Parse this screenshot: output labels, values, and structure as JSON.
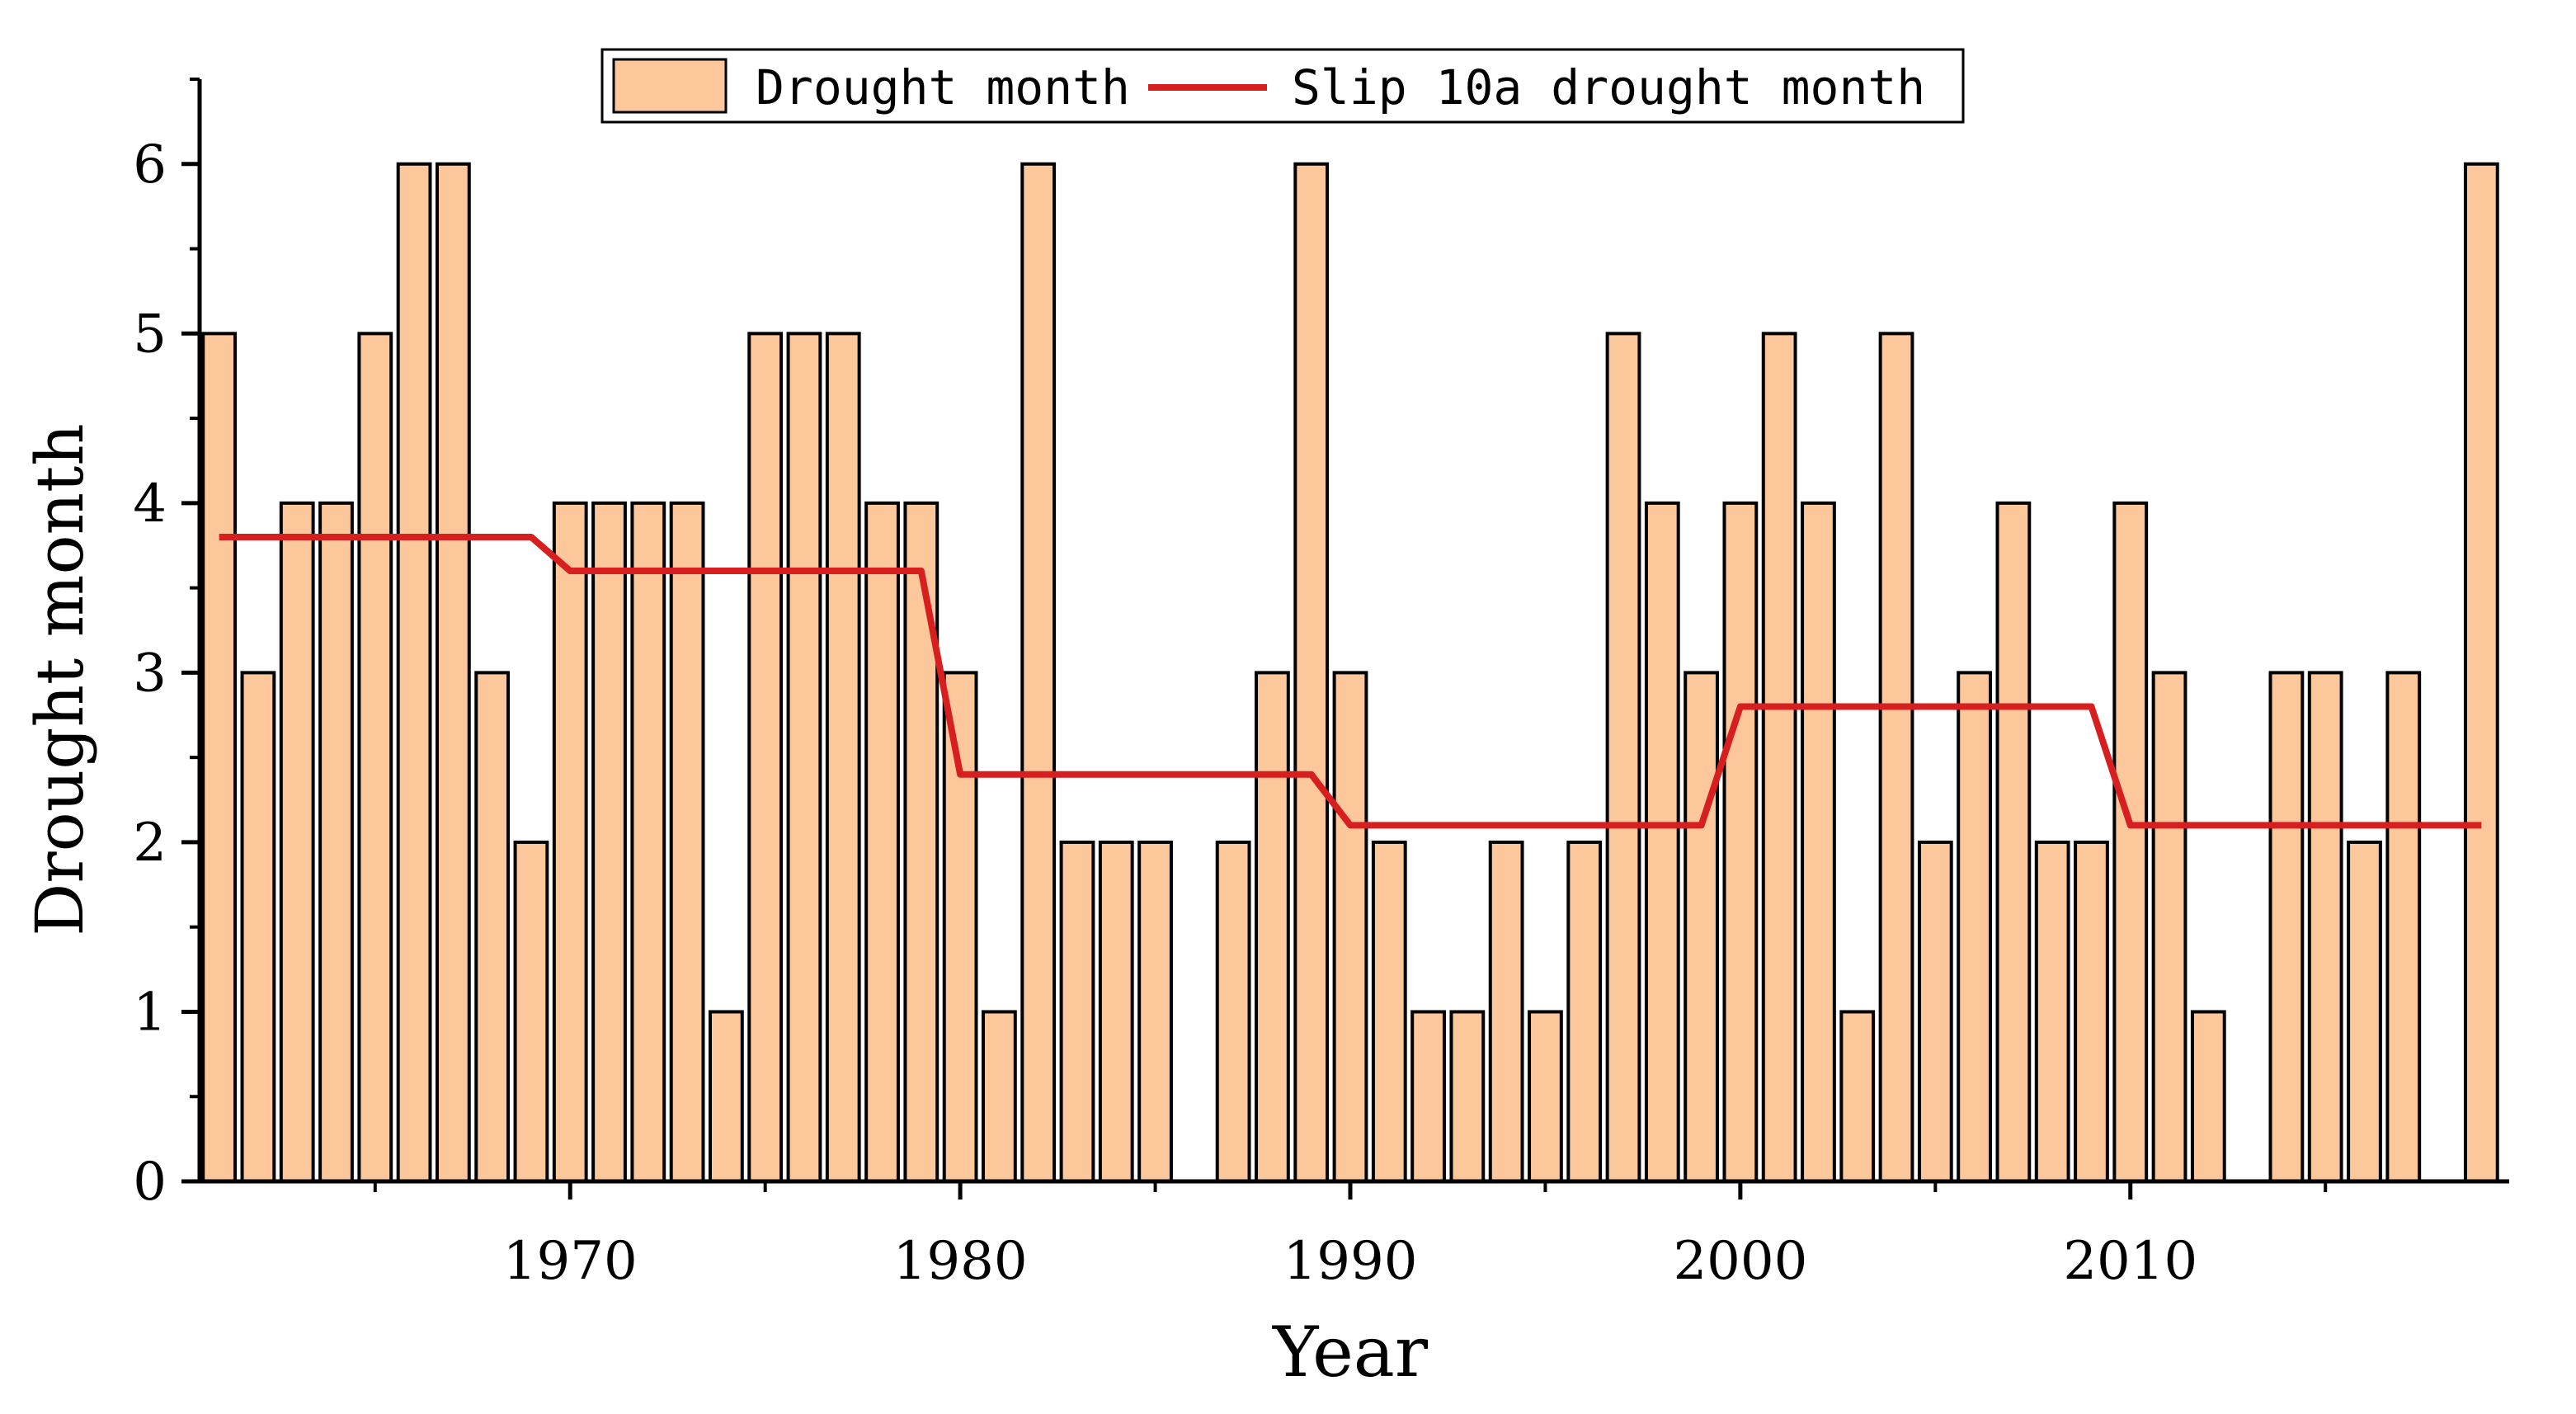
{
  "chart_data": {
    "type": "bar",
    "xlabel": "Year",
    "ylabel": "Drought month",
    "ylim": [
      0,
      6.5
    ],
    "xlim": [
      1960.5,
      2019.5
    ],
    "y_ticks": [
      0,
      1,
      2,
      3,
      4,
      5,
      6
    ],
    "x_ticks": [
      1970,
      1980,
      1990,
      2000,
      2010
    ],
    "x_tick_labels": [
      "1970",
      "1980",
      "1990",
      "2000",
      "2010"
    ],
    "y_tick_labels": [
      "0",
      "1",
      "2",
      "3",
      "4",
      "5",
      "6"
    ],
    "legend": {
      "position": "top-center",
      "bar_label": "Drought month",
      "line_label": "Slip 10a drought month"
    },
    "colors": {
      "bar_fill": "#FCC89B",
      "bar_stroke": "#000000",
      "line": "#D81F1F"
    },
    "series": [
      {
        "name": "Drought month",
        "kind": "bar",
        "x": [
          1961,
          1962,
          1963,
          1964,
          1965,
          1966,
          1967,
          1968,
          1969,
          1970,
          1971,
          1972,
          1973,
          1974,
          1975,
          1976,
          1977,
          1978,
          1979,
          1980,
          1981,
          1982,
          1983,
          1984,
          1985,
          1986,
          1987,
          1988,
          1989,
          1990,
          1991,
          1992,
          1993,
          1994,
          1995,
          1996,
          1997,
          1998,
          1999,
          2000,
          2001,
          2002,
          2003,
          2004,
          2005,
          2006,
          2007,
          2008,
          2009,
          2010,
          2011,
          2012,
          2013,
          2014,
          2015,
          2016,
          2017,
          2018,
          2019
        ],
        "values": [
          5,
          3,
          4,
          4,
          5,
          6,
          6,
          3,
          2,
          4,
          4,
          4,
          4,
          1,
          5,
          5,
          5,
          4,
          4,
          3,
          1,
          6,
          2,
          2,
          2,
          0,
          2,
          3,
          6,
          3,
          2,
          1,
          1,
          2,
          1,
          2,
          5,
          4,
          3,
          4,
          5,
          4,
          1,
          5,
          2,
          3,
          4,
          2,
          2,
          4,
          3,
          1,
          0,
          3,
          3,
          2,
          3,
          0,
          6
        ]
      },
      {
        "name": "Slip 10a drought month",
        "kind": "line",
        "x": [
          1961,
          1969,
          1970,
          1979,
          1980,
          1989,
          1990,
          1999,
          2000,
          2009,
          2010,
          2019
        ],
        "values": [
          3.8,
          3.8,
          3.6,
          3.6,
          2.4,
          2.4,
          2.1,
          2.1,
          2.8,
          2.8,
          2.1,
          2.1
        ]
      }
    ]
  }
}
